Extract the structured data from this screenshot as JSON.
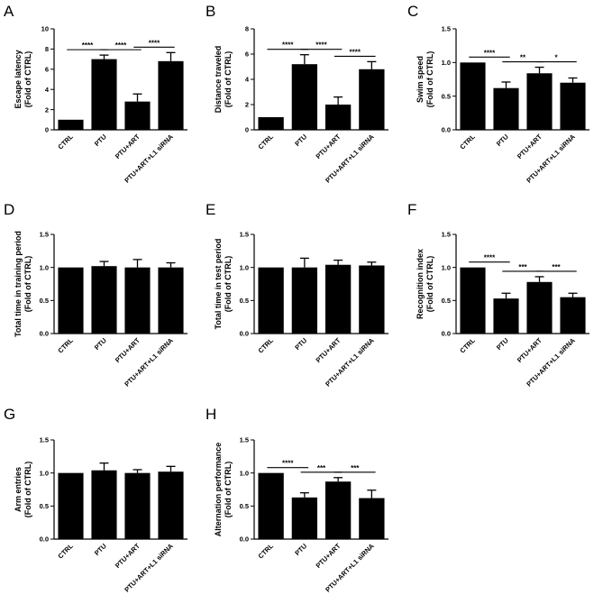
{
  "chart_data": [
    {
      "panel": "A",
      "type": "bar",
      "categories": [
        "CTRL",
        "PTU",
        "PTU+ART",
        "PTU+ART+L1 siRNA"
      ],
      "values": [
        1.0,
        7.0,
        2.8,
        6.8
      ],
      "errors": [
        0,
        0.4,
        0.75,
        0.85
      ],
      "ylabel": [
        "Escape latency",
        "(Fold of CTRL)"
      ],
      "ylim": [
        0,
        10
      ],
      "yticks": [
        "0",
        "2",
        "4",
        "6",
        "8",
        "10"
      ],
      "significance": [
        {
          "from": 0,
          "to": 1,
          "label": "****"
        },
        {
          "from": 1,
          "to": 2,
          "label": "****"
        },
        {
          "from": 2,
          "to": 3,
          "label": "****"
        }
      ]
    },
    {
      "panel": "B",
      "type": "bar",
      "categories": [
        "CTRL",
        "PTU",
        "PTU+ART",
        "PTU+ART+L1 siRNA"
      ],
      "values": [
        1.0,
        5.2,
        2.0,
        4.8
      ],
      "errors": [
        0,
        0.75,
        0.6,
        0.6
      ],
      "ylabel": [
        "Distance traveled",
        "(Fold of CTRL)"
      ],
      "ylim": [
        0,
        8
      ],
      "yticks": [
        "0",
        "2",
        "4",
        "6",
        "8"
      ],
      "significance": [
        {
          "from": 0,
          "to": 1,
          "label": "****"
        },
        {
          "from": 1,
          "to": 2,
          "label": "****"
        },
        {
          "from": 2,
          "to": 3,
          "label": "****"
        }
      ]
    },
    {
      "panel": "C",
      "type": "bar",
      "categories": [
        "CTRL",
        "PTU",
        "PTU+ART",
        "PTU+ART+L1 siRNA"
      ],
      "values": [
        1.0,
        0.62,
        0.84,
        0.7
      ],
      "errors": [
        0,
        0.09,
        0.09,
        0.07
      ],
      "ylabel": [
        "Swim speed",
        "(Fold of CTRL)"
      ],
      "ylim": [
        0,
        1.5
      ],
      "yticks": [
        "0.0",
        "0.5",
        "1.0",
        "1.5"
      ],
      "significance": [
        {
          "from": 0,
          "to": 1,
          "label": "****"
        },
        {
          "from": 1,
          "to": 2,
          "label": "**"
        },
        {
          "from": 2,
          "to": 3,
          "label": "*"
        }
      ]
    },
    {
      "panel": "D",
      "type": "bar",
      "categories": [
        "CTRL",
        "PTU",
        "PTU+ART",
        "PTU+ART+L1 siRNA"
      ],
      "values": [
        1.0,
        1.02,
        1.0,
        1.0
      ],
      "errors": [
        0,
        0.07,
        0.12,
        0.07
      ],
      "ylabel": [
        "Total time in training period",
        "(Fold of CTRL)"
      ],
      "ylim": [
        0,
        1.5
      ],
      "yticks": [
        "0.0",
        "0.5",
        "1.0",
        "1.5"
      ],
      "significance": []
    },
    {
      "panel": "E",
      "type": "bar",
      "categories": [
        "CTRL",
        "PTU",
        "PTU+ART",
        "PTU+ART+L1 siRNA"
      ],
      "values": [
        1.0,
        1.0,
        1.04,
        1.03
      ],
      "errors": [
        0,
        0.14,
        0.07,
        0.05
      ],
      "ylabel": [
        "Total time in test period",
        "(Fold of CTRL)"
      ],
      "ylim": [
        0,
        1.5
      ],
      "yticks": [
        "0.0",
        "0.5",
        "1.0",
        "1.5"
      ],
      "significance": []
    },
    {
      "panel": "F",
      "type": "bar",
      "categories": [
        "CTRL",
        "PTU",
        "PTU+ART",
        "PTU+ART+L1 siRNA"
      ],
      "values": [
        1.0,
        0.53,
        0.78,
        0.55
      ],
      "errors": [
        0,
        0.08,
        0.08,
        0.06
      ],
      "ylabel": [
        "Recognition index",
        "(Fold of CTRL)"
      ],
      "ylim": [
        0,
        1.5
      ],
      "yticks": [
        "0.0",
        "0.5",
        "1.0",
        "1.5"
      ],
      "significance": [
        {
          "from": 0,
          "to": 1,
          "label": "****"
        },
        {
          "from": 1,
          "to": 2,
          "label": "***"
        },
        {
          "from": 2,
          "to": 3,
          "label": "***"
        }
      ]
    },
    {
      "panel": "G",
      "type": "bar",
      "categories": [
        "CTRL",
        "PTU",
        "PTU+ART",
        "PTU+ART+L1 siRNA"
      ],
      "values": [
        1.0,
        1.04,
        1.0,
        1.02
      ],
      "errors": [
        0,
        0.11,
        0.05,
        0.08
      ],
      "ylabel": [
        "Arm entries",
        "(Fold of CTRL)"
      ],
      "ylim": [
        0,
        1.5
      ],
      "yticks": [
        "0.0",
        "0.5",
        "1.0",
        "1.5"
      ],
      "significance": []
    },
    {
      "panel": "H",
      "type": "bar",
      "categories": [
        "CTRL",
        "PTU",
        "PTU+ART",
        "PTU+ART+L1 siRNA"
      ],
      "values": [
        1.0,
        0.63,
        0.87,
        0.62
      ],
      "errors": [
        0,
        0.07,
        0.06,
        0.12
      ],
      "ylabel": [
        "Alternation performance",
        "(Fold of CTRL)"
      ],
      "ylim": [
        0,
        1.5
      ],
      "yticks": [
        "0.0",
        "0.5",
        "1.0",
        "1.5"
      ],
      "significance": [
        {
          "from": 0,
          "to": 1,
          "label": "****"
        },
        {
          "from": 1,
          "to": 2,
          "label": "***"
        },
        {
          "from": 2,
          "to": 3,
          "label": "***"
        }
      ]
    }
  ],
  "colors": {
    "bar": "#000000",
    "axis": "#000000",
    "background": "#ffffff"
  }
}
